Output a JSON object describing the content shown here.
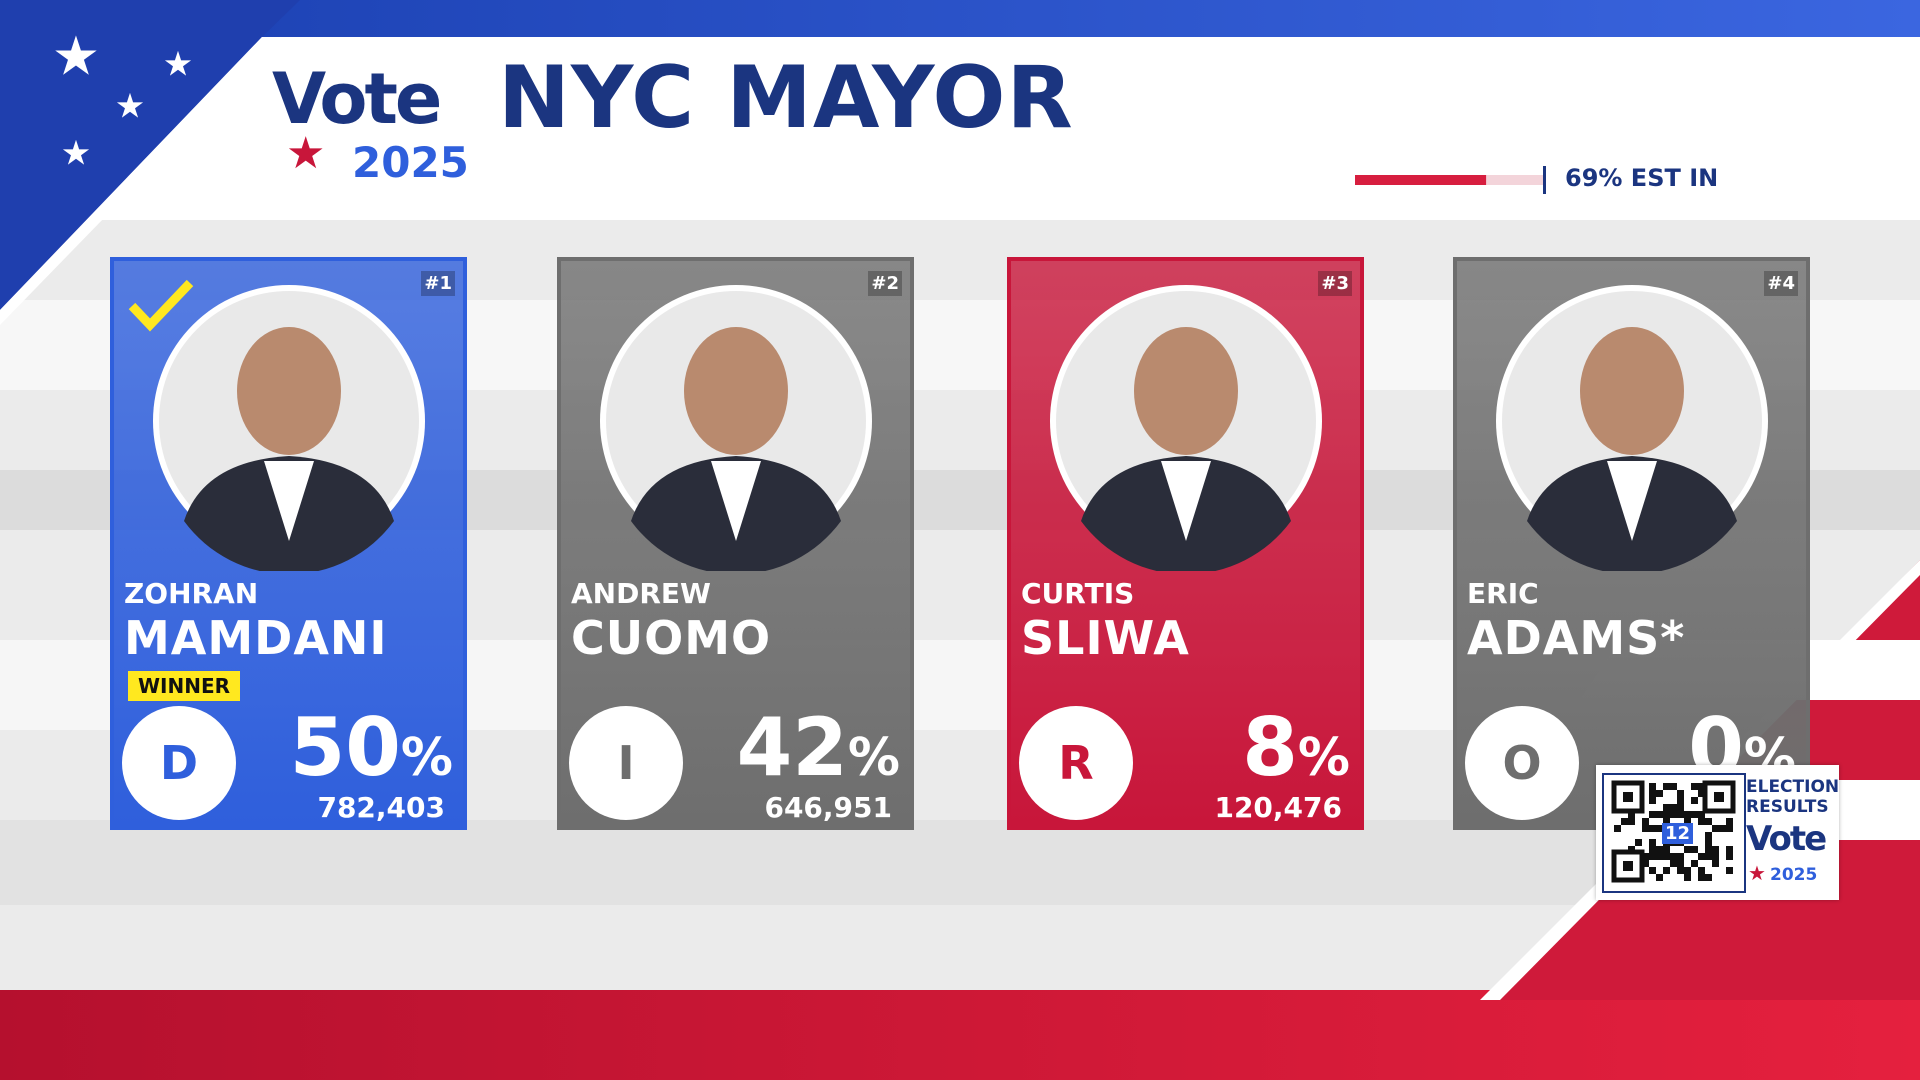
{
  "header": {
    "logo_word": "Vote",
    "logo_year": "2025",
    "title": "NYC MAYOR",
    "reporting_pct": 69,
    "reporting_text": "69% EST IN"
  },
  "candidates": [
    {
      "rank": "#1",
      "first": "ZOHRAN",
      "last": "MAMDANI",
      "status": "WINNER",
      "party": "D",
      "percent": "50",
      "percent_sign": "%",
      "votes": "782,403",
      "color": "#2f5fdc"
    },
    {
      "rank": "#2",
      "first": "ANDREW",
      "last": "CUOMO",
      "party": "I",
      "percent": "42",
      "percent_sign": "%",
      "votes": "646,951",
      "color": "#6e6e6e"
    },
    {
      "rank": "#3",
      "first": "CURTIS",
      "last": "SLIWA",
      "party": "R",
      "percent": "8",
      "percent_sign": "%",
      "votes": "120,476",
      "color": "#c8163a"
    },
    {
      "rank": "#4",
      "first": "ERIC",
      "last": "ADAMS*",
      "party": "O",
      "percent": "0",
      "percent_sign": "%",
      "votes": "",
      "color": "#6e6e6e"
    }
  ],
  "qr": {
    "line1": "ELECTION",
    "line2": "RESULTS",
    "channel": "12",
    "logo_word": "Vote",
    "logo_year": "2025"
  }
}
